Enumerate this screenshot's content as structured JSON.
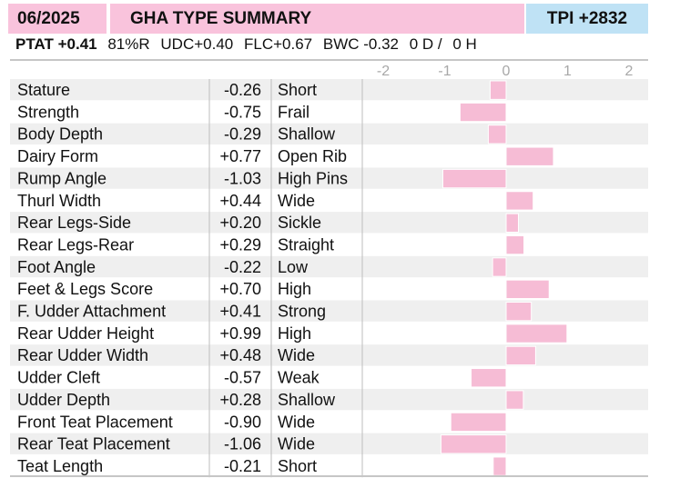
{
  "header": {
    "date": "06/2025",
    "title": "GHA TYPE SUMMARY",
    "tpi": "TPI +2832"
  },
  "summary": {
    "ptat": "PTAT +0.41",
    "reliability": "81%R",
    "udc": "UDC+0.40",
    "flc": "FLC+0.67",
    "bwc": "BWC -0.32",
    "daughters": "0 D /",
    "herds": "0 H"
  },
  "colors": {
    "header_pink": "#f9c3dc",
    "header_blue": "#bfe2f5",
    "bar_pink": "#f6bcd5",
    "row_stripe": "#efefef"
  },
  "chart_data": {
    "type": "bar",
    "orientation": "horizontal",
    "xlim": [
      -2,
      2
    ],
    "x_ticks": [
      "-2",
      "-1",
      "0",
      "1",
      "2"
    ],
    "grid": false,
    "categories": [
      "Stature",
      "Strength",
      "Body Depth",
      "Dairy Form",
      "Rump Angle",
      "Thurl Width",
      "Rear Legs-Side",
      "Rear Legs-Rear",
      "Foot Angle",
      "Feet & Legs Score",
      "F. Udder Attachment",
      "Rear Udder Height",
      "Rear Udder Width",
      "Udder Cleft",
      "Udder Depth",
      "Front Teat Placement",
      "Rear Teat Placement",
      "Teat Length"
    ],
    "value_labels": [
      "-0.26",
      "-0.75",
      "-0.29",
      "+0.77",
      "-1.03",
      "+0.44",
      "+0.20",
      "+0.29",
      "-0.22",
      "+0.70",
      "+0.41",
      "+0.99",
      "+0.48",
      "-0.57",
      "+0.28",
      "-0.90",
      "-1.06",
      "-0.21"
    ],
    "values": [
      -0.26,
      -0.75,
      -0.29,
      0.77,
      -1.03,
      0.44,
      0.2,
      0.29,
      -0.22,
      0.7,
      0.41,
      0.99,
      0.48,
      -0.57,
      0.28,
      -0.9,
      -1.06,
      -0.21
    ],
    "descriptors": [
      "Short",
      "Frail",
      "Shallow",
      "Open Rib",
      "High Pins",
      "Wide",
      "Sickle",
      "Straight",
      "Low",
      "High",
      "Strong",
      "High",
      "Wide",
      "Weak",
      "Shallow",
      "Wide",
      "Wide",
      "Short"
    ]
  }
}
